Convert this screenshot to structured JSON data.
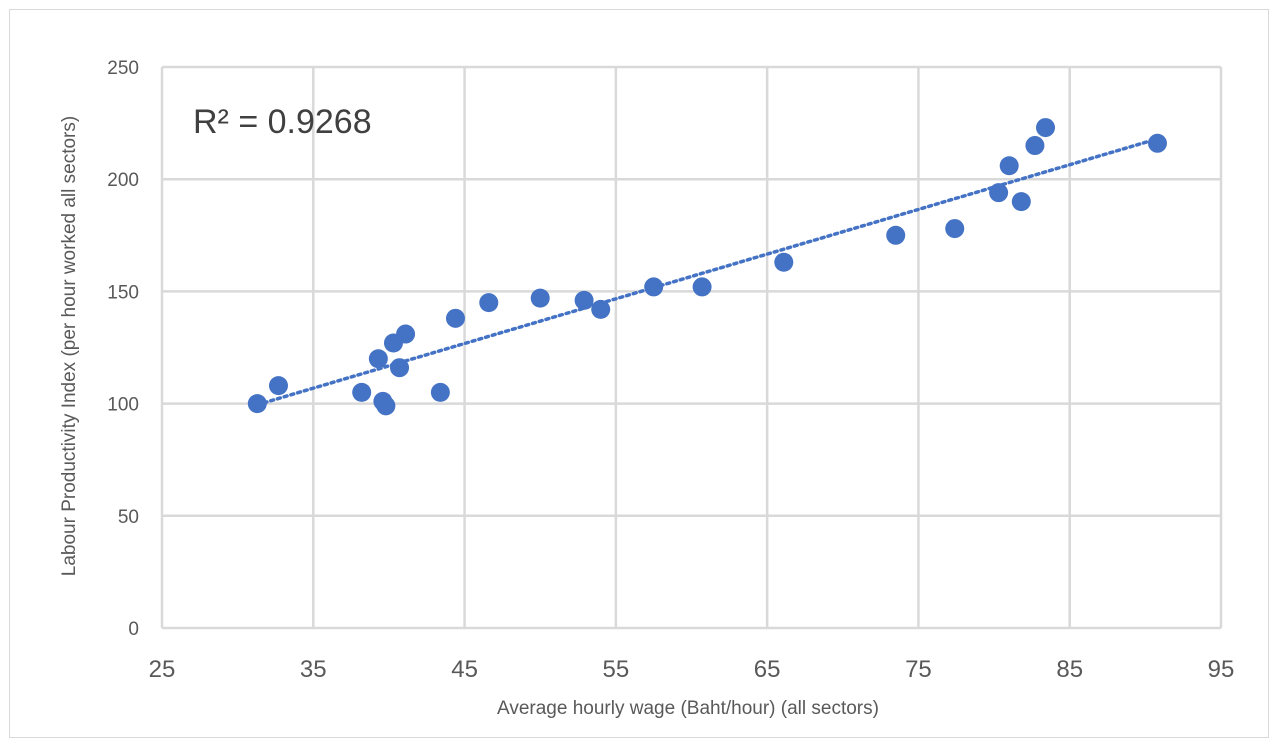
{
  "chart_data": {
    "type": "scatter",
    "xlabel": "Average hourly wage (Baht/hour) (all sectors)",
    "ylabel": "Labour Productivity Index (per hour worked all sectors)",
    "xlim": [
      25,
      95
    ],
    "ylim": [
      0,
      250
    ],
    "xticks": [
      25,
      35,
      45,
      55,
      65,
      75,
      85,
      95
    ],
    "yticks": [
      0,
      50,
      100,
      150,
      200,
      250
    ],
    "grid": true,
    "legend": "none",
    "annotation": "R² = 0.9268",
    "marker_color": "#4472c4",
    "trendline": {
      "type": "linear",
      "style": "dotted",
      "color": "#4472c4",
      "x_range": [
        31.3,
        90.8
      ],
      "y_range": [
        99.5,
        218
      ]
    },
    "points": [
      {
        "x": 31.3,
        "y": 100
      },
      {
        "x": 32.7,
        "y": 108
      },
      {
        "x": 38.2,
        "y": 105
      },
      {
        "x": 39.3,
        "y": 120
      },
      {
        "x": 39.6,
        "y": 101
      },
      {
        "x": 39.8,
        "y": 99
      },
      {
        "x": 40.3,
        "y": 127
      },
      {
        "x": 40.7,
        "y": 116
      },
      {
        "x": 41.1,
        "y": 131
      },
      {
        "x": 43.4,
        "y": 105
      },
      {
        "x": 44.4,
        "y": 138
      },
      {
        "x": 46.6,
        "y": 145
      },
      {
        "x": 50.0,
        "y": 147
      },
      {
        "x": 52.9,
        "y": 146
      },
      {
        "x": 54.0,
        "y": 142
      },
      {
        "x": 57.5,
        "y": 152
      },
      {
        "x": 60.7,
        "y": 152
      },
      {
        "x": 66.1,
        "y": 163
      },
      {
        "x": 73.5,
        "y": 175
      },
      {
        "x": 77.4,
        "y": 178
      },
      {
        "x": 80.3,
        "y": 194
      },
      {
        "x": 81.0,
        "y": 206
      },
      {
        "x": 81.8,
        "y": 190
      },
      {
        "x": 82.7,
        "y": 215
      },
      {
        "x": 83.4,
        "y": 223
      },
      {
        "x": 90.8,
        "y": 216
      }
    ]
  }
}
